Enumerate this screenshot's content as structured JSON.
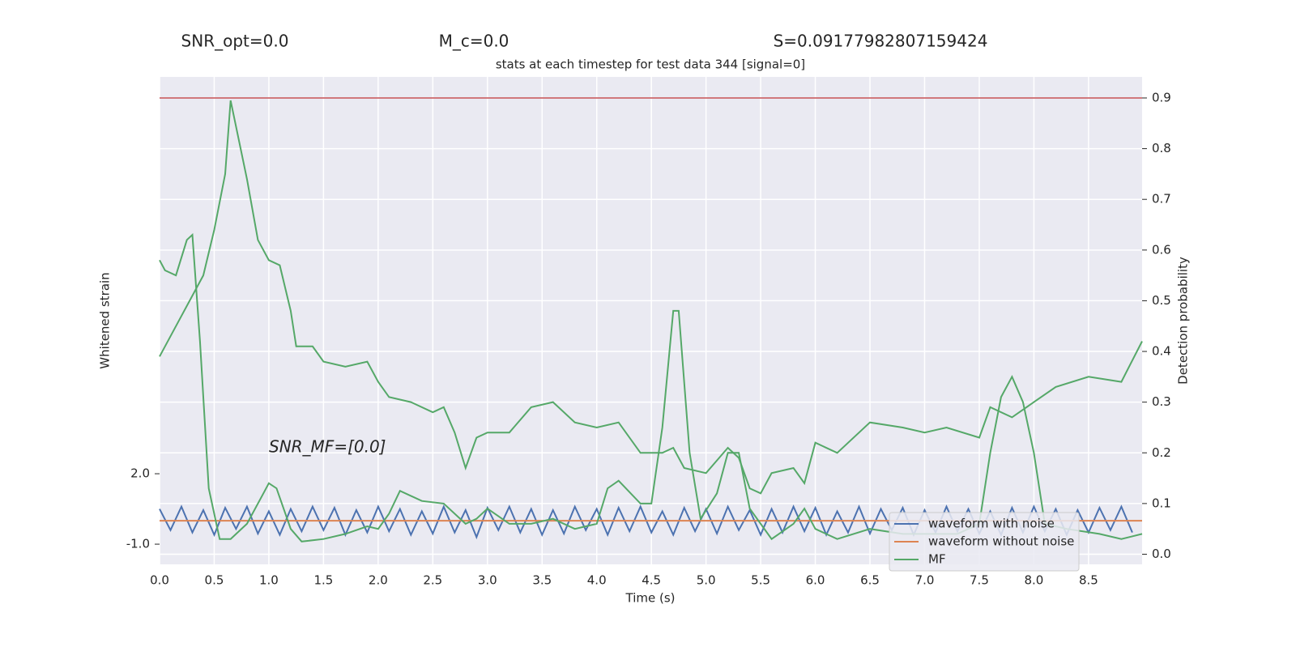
{
  "chart_data": {
    "type": "line",
    "stats": [
      "SNR_opt=0.0",
      "M_c=0.0",
      "S=0.09177982807159424"
    ],
    "title": "stats at each timestep for test data 344 [signal=0]",
    "annotation": "SNR_MF=[0.0]",
    "xlabel": "Time (s)",
    "ylabel": "Whitened strain",
    "y2label": "Detection probability",
    "xlim": [
      0,
      8.99
    ],
    "xticks": [
      {
        "value": 0,
        "label": "0.0"
      },
      0.5,
      {
        "value": 1,
        "label": "1.0"
      },
      1.5,
      {
        "value": 2,
        "label": "2.0"
      },
      2.5,
      {
        "value": 3,
        "label": "3.0"
      },
      3.5,
      {
        "value": 4,
        "label": "4.0"
      },
      4.5,
      {
        "value": 5,
        "label": "5.0"
      },
      5.5,
      {
        "value": 6,
        "label": "6.0"
      },
      6.5,
      {
        "value": 7,
        "label": "7.0"
      },
      7.5,
      {
        "value": 8,
        "label": "8.0"
      },
      8.5
    ],
    "ylim": [
      -1.86,
      18.9
    ],
    "yticks": [
      {
        "value": -1,
        "label": "-1.0"
      },
      {
        "value": 2,
        "label": "2.0"
      }
    ],
    "y2lim": [
      -0.02,
      0.9415
    ],
    "y2ticks": [
      {
        "value": 0,
        "label": "0.0"
      },
      0.1,
      0.2,
      0.3,
      0.4,
      0.5,
      0.6,
      0.7,
      0.8,
      0.9
    ],
    "grid": true,
    "legend": "lower right",
    "threshold": 0.9,
    "threshold_color": "#c44e52",
    "series": [
      {
        "name": "waveform with noise",
        "color": "#4c72b0",
        "x": [
          0,
          0.1,
          0.2,
          0.3,
          0.4,
          0.5,
          0.6,
          0.7,
          0.8,
          0.9,
          1,
          1.1,
          1.2,
          1.3,
          1.4,
          1.5,
          1.6,
          1.7,
          1.8,
          1.9,
          2,
          2.1,
          2.2,
          2.3,
          2.4,
          2.5,
          2.6,
          2.7,
          2.8,
          2.9,
          3,
          3.1,
          3.2,
          3.3,
          3.4,
          3.5,
          3.6,
          3.7,
          3.8,
          3.9,
          4,
          4.1,
          4.2,
          4.3,
          4.4,
          4.5,
          4.6,
          4.7,
          4.8,
          4.9,
          5,
          5.1,
          5.2,
          5.3,
          5.4,
          5.5,
          5.6,
          5.7,
          5.8,
          5.9,
          6,
          6.1,
          6.2,
          6.3,
          6.4,
          6.5,
          6.6,
          6.7,
          6.8,
          6.9,
          7,
          7.1,
          7.2,
          7.3,
          7.4,
          7.5,
          7.6,
          7.7,
          7.8,
          7.9,
          8,
          8.1,
          8.2,
          8.3,
          8.4,
          8.5,
          8.6,
          8.7,
          8.8,
          8.9
        ],
        "values": [
          0.5,
          -0.4,
          0.6,
          -0.5,
          0.45,
          -0.6,
          0.55,
          -0.35,
          0.6,
          -0.55,
          0.4,
          -0.6,
          0.5,
          -0.45,
          0.6,
          -0.4,
          0.55,
          -0.6,
          0.45,
          -0.5,
          0.6,
          -0.45,
          0.5,
          -0.6,
          0.4,
          -0.55,
          0.6,
          -0.5,
          0.45,
          -0.7,
          0.55,
          -0.4,
          0.6,
          -0.5,
          0.5,
          -0.6,
          0.45,
          -0.55,
          0.6,
          -0.4,
          0.5,
          -0.6,
          0.55,
          -0.45,
          0.6,
          -0.5,
          0.4,
          -0.6,
          0.55,
          -0.45,
          0.5,
          -0.55,
          0.6,
          -0.4,
          0.45,
          -0.6,
          0.5,
          -0.5,
          0.6,
          -0.45,
          0.55,
          -0.6,
          0.4,
          -0.5,
          0.6,
          -0.55,
          0.5,
          -0.4,
          0.55,
          -0.6,
          0.45,
          -0.5,
          0.6,
          -0.45,
          0.5,
          -0.55,
          0.4,
          -0.6,
          0.55,
          -0.5,
          0.6,
          -0.45,
          0.5,
          -0.6,
          0.45,
          -0.5,
          0.55,
          -0.4,
          0.6,
          -0.5
        ]
      },
      {
        "name": "waveform without noise",
        "color": "#dd8452",
        "x": [
          0,
          8.99
        ],
        "values": [
          0,
          0
        ]
      },
      {
        "name": "MF",
        "color": "#55a868",
        "axis": "y2",
        "x": [
          0,
          0.05,
          0.15,
          0.25,
          0.3,
          0.37,
          0.45,
          0.55,
          0.65,
          0.8,
          0.95,
          1,
          1.07,
          1.2,
          1.3,
          1.5,
          1.7,
          1.9,
          2,
          2.1,
          2.2,
          2.4,
          2.6,
          2.8,
          2.9,
          3,
          3.2,
          3.4,
          3.6,
          3.8,
          4,
          4.1,
          4.2,
          4.4,
          4.5,
          4.6,
          4.7,
          4.75,
          4.85,
          4.95,
          5.1,
          5.2,
          5.3,
          5.4,
          5.6,
          5.8,
          5.9,
          6,
          6.2,
          6.5,
          6.8,
          7,
          7.3,
          7.5,
          7.6,
          7.7,
          7.8,
          7.9,
          8,
          8.1,
          8.3,
          8.6,
          8.8,
          8.99
        ],
        "values": [
          0.58,
          0.56,
          0.55,
          0.62,
          0.63,
          0.42,
          0.13,
          0.03,
          0.03,
          0.06,
          0.12,
          0.14,
          0.13,
          0.05,
          0.025,
          0.03,
          0.04,
          0.055,
          0.05,
          0.08,
          0.125,
          0.105,
          0.1,
          0.06,
          0.07,
          0.09,
          0.06,
          0.06,
          0.07,
          0.05,
          0.06,
          0.13,
          0.145,
          0.1,
          0.1,
          0.25,
          0.48,
          0.48,
          0.2,
          0.07,
          0.12,
          0.2,
          0.2,
          0.09,
          0.03,
          0.06,
          0.09,
          0.05,
          0.03,
          0.05,
          0.04,
          0.04,
          0.04,
          0.06,
          0.2,
          0.31,
          0.35,
          0.3,
          0.2,
          0.06,
          0.05,
          0.04,
          0.03,
          0.04
        ]
      },
      {
        "color": "#55a868",
        "axis": "y2",
        "x": [
          0,
          0.2,
          0.4,
          0.5,
          0.6,
          0.65,
          0.8,
          0.9,
          1,
          1.1,
          1.2,
          1.25,
          1.4,
          1.5,
          1.7,
          1.9,
          2,
          2.1,
          2.3,
          2.5,
          2.6,
          2.7,
          2.8,
          2.9,
          3,
          3.2,
          3.4,
          3.6,
          3.8,
          4,
          4.2,
          4.4,
          4.6,
          4.7,
          4.8,
          5,
          5.2,
          5.3,
          5.4,
          5.5,
          5.6,
          5.8,
          5.9,
          6,
          6.2,
          6.5,
          6.8,
          7,
          7.2,
          7.5,
          7.6,
          7.8,
          8,
          8.2,
          8.5,
          8.8,
          8.99
        ],
        "values": [
          0.39,
          0.47,
          0.55,
          0.64,
          0.75,
          0.895,
          0.74,
          0.62,
          0.58,
          0.57,
          0.48,
          0.41,
          0.41,
          0.38,
          0.37,
          0.38,
          0.34,
          0.31,
          0.3,
          0.28,
          0.29,
          0.24,
          0.17,
          0.23,
          0.24,
          0.24,
          0.29,
          0.3,
          0.26,
          0.25,
          0.26,
          0.2,
          0.2,
          0.21,
          0.17,
          0.16,
          0.21,
          0.19,
          0.13,
          0.12,
          0.16,
          0.17,
          0.14,
          0.22,
          0.2,
          0.26,
          0.25,
          0.24,
          0.25,
          0.23,
          0.29,
          0.27,
          0.3,
          0.33,
          0.35,
          0.34,
          0.42
        ]
      }
    ]
  }
}
